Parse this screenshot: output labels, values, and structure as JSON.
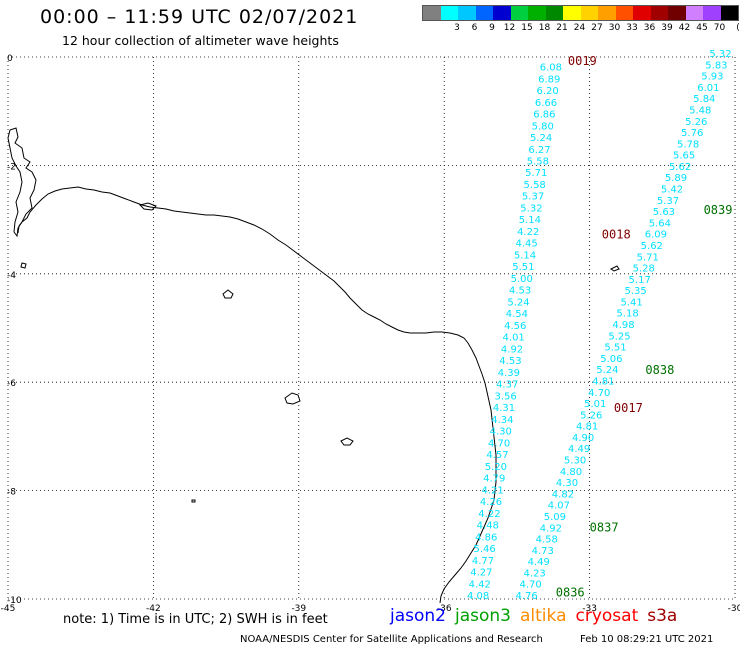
{
  "header": {
    "title": "00:00 – 11:59 UTC 02/07/2021",
    "subtitle": "12 hour collection of altimeter wave heights"
  },
  "color_scale": {
    "unit_label": "(ft)",
    "bins": [
      {
        "label": "",
        "color": "#808080"
      },
      {
        "label": "3",
        "color": "#00ffff"
      },
      {
        "label": "6",
        "color": "#00c8ff"
      },
      {
        "label": "9",
        "color": "#0064ff"
      },
      {
        "label": "12",
        "color": "#0000d0"
      },
      {
        "label": "15",
        "color": "#00d040"
      },
      {
        "label": "18",
        "color": "#00b000"
      },
      {
        "label": "21",
        "color": "#008800"
      },
      {
        "label": "24",
        "color": "#ffff00"
      },
      {
        "label": "27",
        "color": "#ffd200"
      },
      {
        "label": "30",
        "color": "#ffa000"
      },
      {
        "label": "33",
        "color": "#ff5000"
      },
      {
        "label": "36",
        "color": "#e00000"
      },
      {
        "label": "39",
        "color": "#a00000"
      },
      {
        "label": "42",
        "color": "#700000"
      },
      {
        "label": "45",
        "color": "#d080ff"
      },
      {
        "label": "70",
        "color": "#a040ff"
      },
      {
        "label": "",
        "color": "#000000"
      }
    ]
  },
  "map": {
    "lon_ticks": [
      "-45",
      "-42",
      "-39",
      "-36",
      "-33",
      "-30"
    ],
    "lat_ticks": [
      "0",
      "-2",
      "-4",
      "-6",
      "-8",
      "-10"
    ],
    "lon_range": [
      -45,
      -30
    ],
    "lat_range": [
      -10,
      0
    ],
    "track_color": "#00e0ff",
    "track_west": {
      "start": [
        -33.8,
        -0.25
      ],
      "end": [
        -35.3,
        -10.0
      ],
      "values": [
        "6.08",
        "6.89",
        "6.20",
        "6.66",
        "6.86",
        "5.80",
        "5.24",
        "6.27",
        "5.58",
        "5.71",
        "5.58",
        "5.37",
        "5.32",
        "5.14",
        "4.22",
        "4.45",
        "5.14",
        "5.51",
        "5.00",
        "4.53",
        "5.24",
        "4.54",
        "4.56",
        "4.01",
        "4.92",
        "4.53",
        "4.39",
        "4.37",
        "3.56",
        "4.31",
        "4.34",
        "4.30",
        "4.70",
        "4.57",
        "5.20",
        "4.79",
        "4.21",
        "4.26",
        "4.22",
        "4.48",
        "4.86",
        "5.46",
        "4.77",
        "4.27",
        "4.42",
        "4.08"
      ]
    },
    "track_east": {
      "start": [
        -30.3,
        0.0
      ],
      "end": [
        -34.3,
        -10.0
      ],
      "values": [
        "5.32",
        "5.83",
        "5.93",
        "6.01",
        "5.84",
        "5.48",
        "5.26",
        "5.76",
        "5.78",
        "5.65",
        "5.62",
        "5.89",
        "5.42",
        "5.37",
        "5.63",
        "5.64",
        "6.09",
        "5.62",
        "5.71",
        "5.28",
        "5.17",
        "5.35",
        "5.41",
        "5.18",
        "4.98",
        "5.25",
        "5.51",
        "5.06",
        "5.24",
        "4.81",
        "4.70",
        "5.01",
        "5.26",
        "4.81",
        "4.90",
        "4.49",
        "5.30",
        "4.80",
        "4.30",
        "4.82",
        "4.07",
        "5.09",
        "4.92",
        "4.58",
        "4.73",
        "4.49",
        "4.23",
        "4.70",
        "4.76"
      ]
    },
    "time_labels": [
      {
        "text": "0019",
        "color": "#800000",
        "lon": -33.15,
        "lat": -0.15
      },
      {
        "text": "0018",
        "color": "#800000",
        "lon": -32.45,
        "lat": -3.35
      },
      {
        "text": "0017",
        "color": "#800000",
        "lon": -32.2,
        "lat": -6.55
      },
      {
        "text": "0839",
        "color": "#007000",
        "lon": -30.35,
        "lat": -2.9
      },
      {
        "text": "0838",
        "color": "#007000",
        "lon": -31.55,
        "lat": -5.85
      },
      {
        "text": "0837",
        "color": "#007000",
        "lon": -32.7,
        "lat": -8.75
      },
      {
        "text": "0836",
        "color": "#007000",
        "lon": -33.4,
        "lat": -9.95
      }
    ]
  },
  "footer": {
    "note": "note: 1) Time is in UTC; 2) SWH is in feet",
    "satellites": [
      {
        "name": "jason2",
        "color": "#0000ff"
      },
      {
        "name": "jason3",
        "color": "#00a000"
      },
      {
        "name": "altika",
        "color": "#ff8c00"
      },
      {
        "name": "cryosat",
        "color": "#ff0000"
      },
      {
        "name": "s3a",
        "color": "#a00000"
      }
    ],
    "credit": "NOAA/NESDIS Center for Satellite Applications and Research",
    "timestamp": "Feb 10 08:29:21 UTC 2021"
  }
}
